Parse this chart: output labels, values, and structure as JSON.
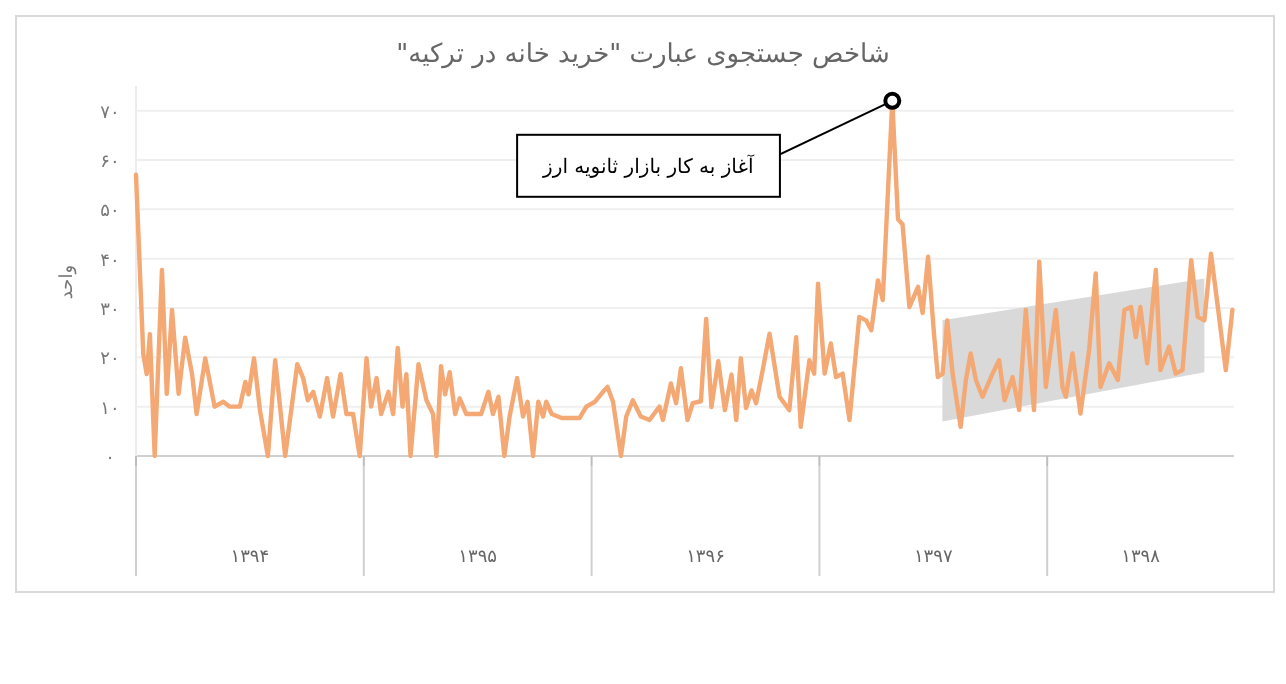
{
  "chart_data": {
    "type": "line",
    "title": "شاخص جستجوی عبارت \"خرید خانه در ترکیه\"",
    "ylabel": "واحد",
    "xlim": [
      1394,
      1398.82
    ],
    "ylim": [
      0,
      75
    ],
    "xticks": [
      {
        "value": 1394.5,
        "label": "۱۳۹۴"
      },
      {
        "value": 1395.5,
        "label": "۱۳۹۵"
      },
      {
        "value": 1396.5,
        "label": "۱۳۹۶"
      },
      {
        "value": 1397.5,
        "label": "۱۳۹۷"
      },
      {
        "value": 1398.41,
        "label": "۱۳۹۸"
      },
      {
        "value": 1394,
        "label": null
      },
      {
        "value": 1395,
        "label": null
      },
      {
        "value": 1396,
        "label": null
      },
      {
        "value": 1397,
        "label": null
      },
      {
        "value": 1398,
        "label": null
      }
    ],
    "yticks": [
      {
        "value": 0,
        "label": "۰"
      },
      {
        "value": 10,
        "label": "۱۰"
      },
      {
        "value": 20,
        "label": "۲۰"
      },
      {
        "value": 30,
        "label": "۳۰"
      },
      {
        "value": 40,
        "label": "۴۰"
      },
      {
        "value": 50,
        "label": "۵۰"
      },
      {
        "value": 60,
        "label": "۶۰"
      },
      {
        "value": 70,
        "label": "۷۰"
      }
    ],
    "grid": "y",
    "annotations": [
      {
        "text": "آغاز به کار بازار ثانویه ارز",
        "x": 1397.32,
        "y": 72
      }
    ],
    "series": [
      {
        "type": "area",
        "color": "#d9d9d9",
        "x": [
          1397.54,
          1398.69
        ],
        "values": [
          null,
          null
        ],
        "lower": [
          7,
          17
        ],
        "upper": [
          27.5,
          36
        ]
      },
      {
        "color": "#f4a874",
        "x": [
          1394.0,
          1394.032,
          1394.047,
          1394.061,
          1394.082,
          1394.114,
          1394.135,
          1394.158,
          1394.187,
          1394.216,
          1394.246,
          1394.266,
          1394.304,
          1394.345,
          1394.383,
          1394.412,
          1394.456,
          1394.48,
          1394.494,
          1394.518,
          1394.544,
          1394.579,
          1394.611,
          1394.655,
          1394.708,
          1394.734,
          1394.754,
          1394.778,
          1394.807,
          1394.839,
          1394.865,
          1394.898,
          1394.924,
          1394.953,
          1394.982,
          1395.012,
          1395.032,
          1395.056,
          1395.076,
          1395.108,
          1395.129,
          1395.149,
          1395.17,
          1395.187,
          1395.205,
          1395.24,
          1395.275,
          1395.304,
          1395.319,
          1395.339,
          1395.357,
          1395.377,
          1395.401,
          1395.421,
          1395.45,
          1395.515,
          1395.547,
          1395.567,
          1395.591,
          1395.617,
          1395.64,
          1395.673,
          1395.699,
          1395.719,
          1395.743,
          1395.766,
          1395.787,
          1395.801,
          1395.825,
          1395.868,
          1395.947,
          1395.977,
          1396.015,
          1396.05,
          1396.07,
          1396.094,
          1396.129,
          1396.152,
          1396.181,
          1396.216,
          1396.254,
          1396.298,
          1396.313,
          1396.348,
          1396.371,
          1396.392,
          1396.421,
          1396.444,
          1396.48,
          1396.503,
          1396.526,
          1396.556,
          1396.585,
          1396.614,
          1396.635,
          1396.655,
          1396.678,
          1396.702,
          1396.722,
          1396.751,
          1396.781,
          1396.825,
          1396.868,
          1396.898,
          1396.918,
          1396.956,
          1396.977,
          1396.994,
          1397.023,
          1397.05,
          1397.073,
          1397.102,
          1397.132,
          1397.175,
          1397.205,
          1397.228,
          1397.257,
          1397.278,
          1397.32,
          1397.345,
          1397.365,
          1397.395,
          1397.433,
          1397.453,
          1397.477,
          1397.503,
          1397.52,
          1397.541,
          1397.561,
          1397.585,
          1397.62,
          1397.643,
          1397.664,
          1397.687,
          1397.716,
          1397.76,
          1397.789,
          1397.813,
          1397.848,
          1397.877,
          1397.906,
          1397.942,
          1397.965,
          1397.994,
          1398.038,
          1398.067,
          1398.082,
          1398.111,
          1398.146,
          1398.184,
          1398.213,
          1398.234,
          1398.272,
          1398.31,
          1398.339,
          1398.368,
          1398.389,
          1398.409,
          1398.439,
          1398.477,
          1398.497,
          1398.535,
          1398.564,
          1398.594,
          1398.632,
          1398.661,
          1398.69,
          1398.719,
          1398.749,
          1398.784,
          1398.813
        ],
        "values": [
          57,
          20.6,
          16.6,
          24.7,
          0,
          37.7,
          12.6,
          29.6,
          12.6,
          24,
          16.6,
          8.5,
          19.8,
          10,
          11,
          10,
          10,
          15,
          12.5,
          19.8,
          9.3,
          0,
          19.4,
          0,
          18.6,
          15.8,
          11.3,
          13,
          8,
          15.8,
          8,
          16.6,
          8.5,
          8.5,
          0,
          19.8,
          10,
          15.8,
          8.5,
          13,
          8.5,
          21.9,
          10,
          16.6,
          0,
          18.6,
          11.3,
          8.5,
          0,
          18.2,
          12.5,
          17,
          8.5,
          11.7,
          8.5,
          8.5,
          13,
          8.5,
          12,
          0,
          8,
          15.8,
          8,
          11,
          0,
          11,
          8,
          11,
          8.5,
          7.7,
          7.7,
          10,
          11,
          13,
          14,
          11,
          0,
          8,
          11.3,
          8,
          7.3,
          10,
          7.3,
          14.7,
          10.7,
          17.8,
          7.3,
          10.7,
          11.1,
          27.8,
          9.9,
          19.2,
          9.3,
          16.5,
          7.3,
          19.8,
          9.7,
          13.3,
          10.7,
          17.4,
          24.8,
          12,
          9.3,
          24.1,
          5.9,
          19.4,
          16.7,
          34.9,
          16.7,
          22.8,
          16,
          16.7,
          7.3,
          28.2,
          27.5,
          25.5,
          35.6,
          31.6,
          72,
          48,
          47,
          30.2,
          34.3,
          29,
          40.4,
          24.8,
          16,
          16.7,
          27.5,
          16.7,
          5.9,
          15.4,
          20.8,
          15.4,
          12,
          16.7,
          19.4,
          11.3,
          16,
          9.3,
          29.6,
          9.3,
          39.4,
          14,
          29.6,
          14,
          12,
          20.8,
          8.6,
          21.5,
          37,
          14,
          18.8,
          15.4,
          29.6,
          30.2,
          24.1,
          30.2,
          18.8,
          37.7,
          17.4,
          22.2,
          16.7,
          17.4,
          39.7,
          28.2,
          27.5,
          41,
          30.2,
          17.4,
          29.6
        ]
      }
    ]
  }
}
